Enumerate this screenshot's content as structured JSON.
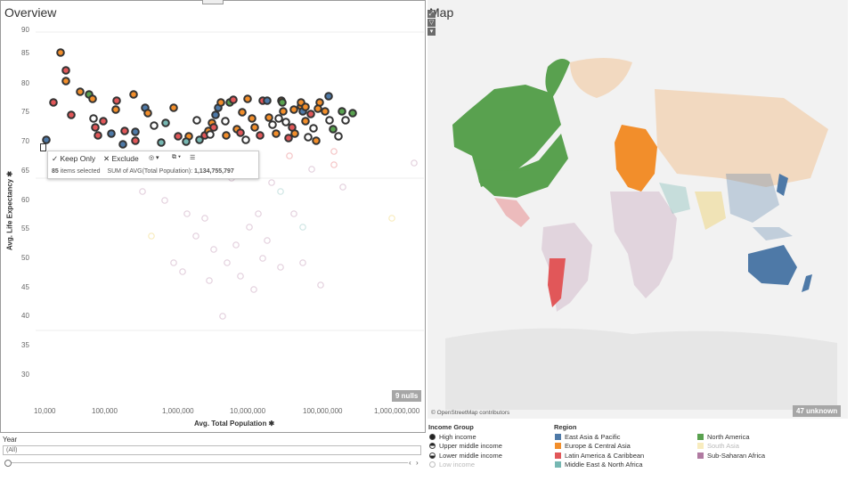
{
  "overview": {
    "title": "Overview",
    "y_axis_title": "Avg. Life Expectancy ✱",
    "x_axis_title": "Avg. Total Population ✱",
    "y_ticks": [
      "90",
      "85",
      "80",
      "75",
      "70",
      "65",
      "60",
      "55",
      "50",
      "45",
      "40",
      "35",
      "30"
    ],
    "x_ticks": [
      "10,000",
      "100,000",
      "1,000,000",
      "10,000,000",
      "100,000,000",
      "1,000,000,000"
    ],
    "nulls_badge": "9 nulls"
  },
  "tooltip": {
    "keep_only": "✓ Keep Only",
    "exclude": "✕ Exclude",
    "group_icon": "◎ ▾",
    "link_icon": "⧉ ▾",
    "view_data_icon": "☰",
    "items_count": "85",
    "items_text": " items selected",
    "sum_text": "SUM of AVG(Total Population):",
    "sum_value": "1,134,755,797"
  },
  "map": {
    "title": "Map",
    "attribution": "© OpenStreetMap contributors",
    "unknown_badge": "47 unknown",
    "btn_expand": "⤢",
    "btn_filter": "▽",
    "btn_more": "▾"
  },
  "legend": {
    "income_title": "Income Group",
    "income_items": [
      "High income",
      "Upper middle income",
      "Lower middle income",
      "Low income"
    ],
    "region_title": "Region",
    "regions": [
      {
        "label": "East Asia & Pacific",
        "color": "#4e79a7"
      },
      {
        "label": "Europe & Central Asia",
        "color": "#f28e2b"
      },
      {
        "label": "Latin America & Caribbean",
        "color": "#e15759"
      },
      {
        "label": "Middle East & North Africa",
        "color": "#76b7b2"
      },
      {
        "label": "North America",
        "color": "#59a14f"
      },
      {
        "label": "South Asia",
        "color": "#edc948"
      },
      {
        "label": "Sub-Saharan Africa",
        "color": "#b07aa1"
      }
    ]
  },
  "year": {
    "label": "Year",
    "value": "(All)",
    "prev": "‹",
    "next": "›"
  }
}
